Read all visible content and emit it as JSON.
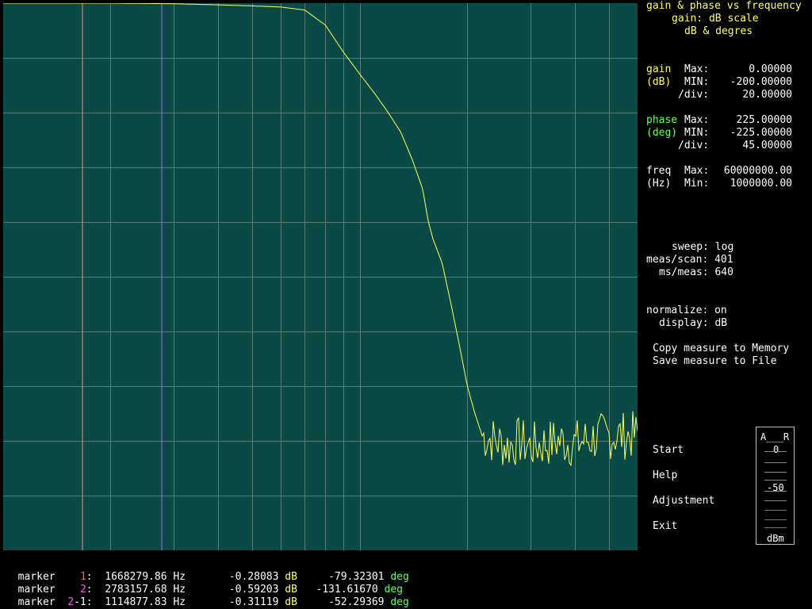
{
  "header": {
    "title": "gain & phase vs frequency",
    "gain_scale": "gain: dB scale",
    "units": "dB & degres"
  },
  "gain": {
    "label": "gain",
    "unit": "(dB)",
    "max_label": "Max:",
    "min_label": "MIN:",
    "div_label": "/div:",
    "max": "0.00000",
    "min": "-200.00000",
    "div": "20.00000"
  },
  "phase": {
    "label": "phase",
    "unit": "(deg)",
    "max_label": "Max:",
    "min_label": "MIN:",
    "div_label": "/div:",
    "max": "225.00000",
    "min": "-225.00000",
    "div": "45.00000"
  },
  "freq": {
    "label": "freq",
    "unit": "(Hz)",
    "max_label": "Max:",
    "min_label": "Min:",
    "max": "60000000.00",
    "min": "1000000.00"
  },
  "settings": {
    "sweep": "sweep: log",
    "meas_scan": "meas/scan: 401",
    "ms_meas": "ms/meas: 640",
    "normalize": "normalize: on",
    "display": "display: dB"
  },
  "actions": {
    "copy": "Copy measure to Memory",
    "save": "Save measure to File"
  },
  "menu": {
    "start": "Start",
    "help": "Help",
    "adjustment": "Adjustment",
    "exit": "Exit"
  },
  "meter": {
    "a_r": "A___R",
    "zero": "0",
    "minus50": "-50",
    "unit": "dBm"
  },
  "markers": [
    {
      "label": "marker",
      "id_a": "1",
      "id_b": "",
      "freq": "1668279.86",
      "hz": "Hz",
      "db": "-0.28083",
      "db_unit": "dB",
      "deg": "-79.32301",
      "deg_unit": "deg"
    },
    {
      "label": "marker",
      "id_a": "2",
      "id_b": "",
      "freq": "2783157.68",
      "hz": "Hz",
      "db": "-0.59203",
      "db_unit": "dB",
      "deg": "-131.61670",
      "deg_unit": "deg"
    },
    {
      "label": "marker",
      "id_a": "2",
      "id_b": "-1",
      "freq": "1114877.83",
      "hz": "Hz",
      "db": "-0.31119",
      "db_unit": "dB",
      "deg": "-52.29369",
      "deg_unit": "deg"
    }
  ],
  "colors": {
    "plot_bg": "#0a4a46",
    "grid": "#5a7a76",
    "trace": "#ffff55",
    "marker1": "#ff8888",
    "marker2": "#aa66ff"
  },
  "chart_data": {
    "type": "line",
    "title": "",
    "xlabel": "",
    "ylabel": "",
    "x_scale": "log",
    "xlim": [
      1000000,
      60000000
    ],
    "ylim": [
      -200,
      0
    ],
    "grid": true,
    "series": [
      {
        "name": "",
        "points": [
          [
            1000000,
            0.0
          ],
          [
            2000000,
            0.0
          ],
          [
            3000000,
            -0.2
          ],
          [
            4000000,
            -0.6
          ],
          [
            5000000,
            -1.0
          ],
          [
            6000000,
            -1.4
          ],
          [
            7000000,
            -2.5
          ],
          [
            8000000,
            -8
          ],
          [
            9000000,
            -18
          ],
          [
            10000000,
            -26
          ],
          [
            11000000,
            -33
          ],
          [
            12000000,
            -40
          ],
          [
            13000000,
            -47
          ],
          [
            14000000,
            -57
          ],
          [
            15000000,
            -68
          ],
          [
            15500000,
            -79
          ],
          [
            16000000,
            -86
          ],
          [
            17000000,
            -95
          ],
          [
            18000000,
            -110
          ],
          [
            19000000,
            -125
          ],
          [
            20000000,
            -140
          ],
          [
            21000000,
            -150
          ],
          [
            22000000,
            -158
          ],
          [
            24000000,
            -160
          ],
          [
            26000000,
            -162
          ],
          [
            28000000,
            -160
          ],
          [
            30000000,
            -162
          ],
          [
            33000000,
            -161
          ],
          [
            36000000,
            -160
          ],
          [
            40000000,
            -161
          ],
          [
            45000000,
            -159
          ],
          [
            50000000,
            -158
          ],
          [
            55000000,
            -158
          ],
          [
            60000000,
            -158
          ]
        ]
      }
    ],
    "markers_hz": [
      1668279.86,
      2783157.68
    ]
  }
}
